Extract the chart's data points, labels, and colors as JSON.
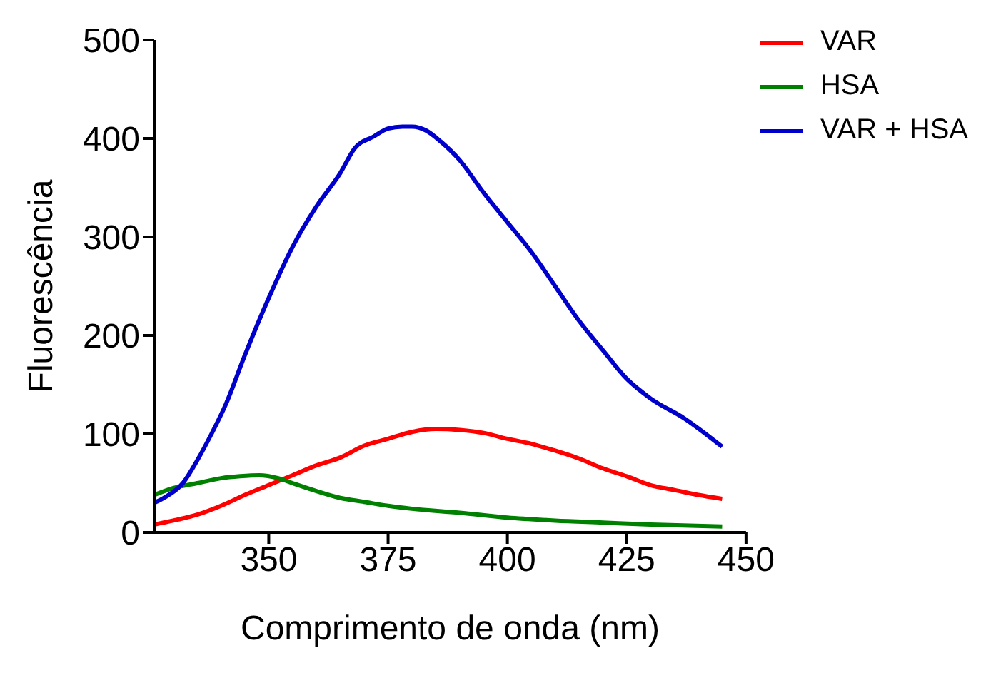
{
  "chart_data": {
    "type": "line",
    "xlabel": "Comprimento de onda (nm)",
    "ylabel": "Fluorescência",
    "xlim": [
      326,
      450
    ],
    "xticks": [
      350,
      375,
      400,
      425,
      450
    ],
    "ylim": [
      0,
      500
    ],
    "yticks": [
      0,
      100,
      200,
      300,
      400,
      500
    ],
    "legend": "top right",
    "marker": "none",
    "line_style": "solid",
    "series": [
      {
        "name": "VAR",
        "color": "#ff0000",
        "x": [
          326,
          330,
          335,
          340,
          345,
          350,
          355,
          360,
          365,
          370,
          375,
          380,
          385,
          390,
          395,
          400,
          405,
          410,
          415,
          420,
          425,
          430,
          435,
          440,
          445
        ],
        "values": [
          8,
          12,
          18,
          27,
          38,
          48,
          58,
          68,
          76,
          88,
          95,
          102,
          105,
          104,
          101,
          95,
          90,
          83,
          75,
          65,
          57,
          48,
          43,
          38,
          34
        ]
      },
      {
        "name": "HSA",
        "color": "#008000",
        "x": [
          326,
          330,
          335,
          340,
          344,
          348,
          352,
          355,
          360,
          365,
          370,
          375,
          380,
          390,
          400,
          410,
          420,
          430,
          445
        ],
        "values": [
          38,
          45,
          50,
          55,
          57,
          58,
          55,
          50,
          42,
          35,
          31,
          27,
          24,
          20,
          15,
          12,
          10,
          8,
          6
        ]
      },
      {
        "name": "VAR + HSA",
        "color": "#0000cc",
        "x": [
          326,
          328,
          332,
          335,
          338,
          341,
          345,
          350,
          355,
          360,
          365,
          368,
          372,
          375,
          378,
          380,
          383,
          386,
          390,
          395,
          400,
          405,
          410,
          415,
          420,
          425,
          430,
          437,
          445
        ],
        "values": [
          30,
          35,
          50,
          73,
          100,
          130,
          180,
          238,
          290,
          331,
          365,
          390,
          402,
          410,
          412,
          412,
          408,
          397,
          378,
          345,
          315,
          285,
          250,
          215,
          185,
          156,
          136,
          116,
          87
        ]
      }
    ]
  }
}
